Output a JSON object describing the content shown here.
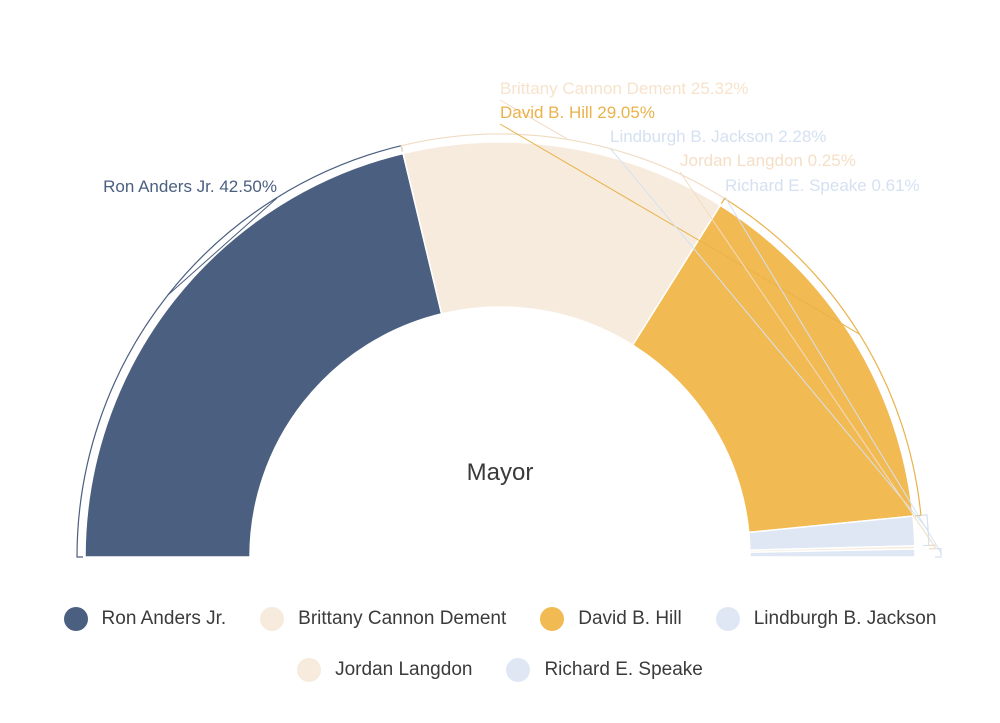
{
  "chart_data": {
    "type": "pie",
    "variant": "semi-donut",
    "center_label": "Mayor",
    "slices": [
      {
        "name": "Ron Anders Jr.",
        "value": 42.5,
        "label": "Ron Anders Jr. 42.50%",
        "color": "#4b5f80"
      },
      {
        "name": "Brittany Cannon Dement",
        "value": 25.32,
        "label": "Brittany Cannon Dement 25.32%",
        "color": "#f7ebdd"
      },
      {
        "name": "David B. Hill",
        "value": 29.05,
        "label": "David B. Hill 29.05%",
        "color": "#f2ba52"
      },
      {
        "name": "Lindburgh B. Jackson",
        "value": 2.28,
        "label": "Lindburgh B. Jackson 2.28%",
        "color": "#dfe7f4"
      },
      {
        "name": "Jordan Langdon",
        "value": 0.25,
        "label": "Jordan Langdon 0.25%",
        "color": "#f7ebdd"
      },
      {
        "name": "Richard E. Speake",
        "value": 0.61,
        "label": "Richard E. Speake 0.61%",
        "color": "#dfe7f4"
      }
    ],
    "legend_position": "bottom"
  }
}
